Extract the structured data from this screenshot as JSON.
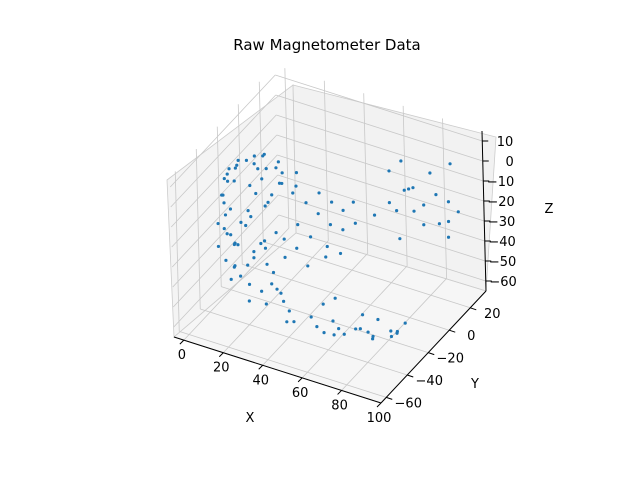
{
  "chart_data": {
    "type": "scatter3d",
    "title": "Raw Magnetometer Data",
    "xlabel": "X",
    "ylabel": "Y",
    "zlabel": "Z",
    "xlim": [
      -5,
      100
    ],
    "ylim": [
      -65,
      35
    ],
    "zlim": [
      -65,
      15
    ],
    "xticks": [
      0,
      20,
      40,
      60,
      80,
      100
    ],
    "yticks": [
      -60,
      -40,
      -20,
      0,
      20
    ],
    "zticks": [
      -60,
      -50,
      -40,
      -30,
      -20,
      -10,
      0,
      10
    ],
    "grid": true,
    "marker_color": "#1f77b4",
    "points": [
      [
        15,
        -30,
        10
      ],
      [
        18,
        -28,
        12
      ],
      [
        20,
        -32,
        11
      ],
      [
        22,
        -26,
        13
      ],
      [
        25,
        -30,
        9
      ],
      [
        28,
        -24,
        10
      ],
      [
        30,
        -30,
        11
      ],
      [
        24,
        -36,
        12
      ],
      [
        32,
        -28,
        8
      ],
      [
        35,
        -34,
        7
      ],
      [
        12,
        -35,
        8
      ],
      [
        10,
        -30,
        6
      ],
      [
        8,
        -25,
        5
      ],
      [
        6,
        -30,
        3
      ],
      [
        14,
        -40,
        5
      ],
      [
        27,
        -38,
        9
      ],
      [
        36,
        -22,
        6
      ],
      [
        40,
        -30,
        5
      ],
      [
        19,
        -22,
        9
      ],
      [
        33,
        -40,
        4
      ],
      [
        5,
        -30,
        0
      ],
      [
        4,
        -28,
        -5
      ],
      [
        3,
        -32,
        -10
      ],
      [
        3,
        -30,
        -15
      ],
      [
        4,
        -26,
        -20
      ],
      [
        5,
        -34,
        -25
      ],
      [
        6,
        -30,
        -30
      ],
      [
        7,
        -28,
        -35
      ],
      [
        6,
        -35,
        -40
      ],
      [
        5,
        -25,
        -38
      ],
      [
        3,
        -36,
        -22
      ],
      [
        2,
        -29,
        -12
      ],
      [
        8,
        -31,
        -45
      ],
      [
        10,
        -29,
        -50
      ],
      [
        9,
        -36,
        -48
      ],
      [
        11,
        -24,
        -47
      ],
      [
        4,
        -31,
        -2
      ],
      [
        7,
        -22,
        -28
      ],
      [
        2,
        -26,
        -33
      ],
      [
        4,
        -38,
        -32
      ],
      [
        15,
        -30,
        -52
      ],
      [
        20,
        -28,
        -55
      ],
      [
        25,
        -33,
        -57
      ],
      [
        30,
        -26,
        -58
      ],
      [
        35,
        -30,
        -59
      ],
      [
        40,
        -35,
        -60
      ],
      [
        45,
        -28,
        -60
      ],
      [
        50,
        -32,
        -61
      ],
      [
        55,
        -26,
        -60
      ],
      [
        60,
        -30,
        -60
      ],
      [
        65,
        -34,
        -59
      ],
      [
        70,
        -28,
        -58
      ],
      [
        75,
        -30,
        -57
      ],
      [
        80,
        -35,
        -56
      ],
      [
        85,
        -27,
        -55
      ],
      [
        88,
        -32,
        -54
      ],
      [
        90,
        -30,
        -52
      ],
      [
        92,
        -34,
        -50
      ],
      [
        93,
        -28,
        -48
      ],
      [
        78,
        -26,
        -52
      ],
      [
        62,
        -38,
        -58
      ],
      [
        48,
        -22,
        -56
      ],
      [
        38,
        -38,
        -59
      ],
      [
        68,
        -22,
        -55
      ],
      [
        58,
        -40,
        -57
      ],
      [
        72,
        -36,
        -53
      ],
      [
        83,
        -40,
        -51
      ],
      [
        52,
        -18,
        -54
      ],
      [
        18,
        -36,
        -56
      ],
      [
        26,
        -21,
        -58
      ],
      [
        25,
        -18,
        -5
      ],
      [
        30,
        -15,
        -10
      ],
      [
        35,
        -12,
        -15
      ],
      [
        40,
        -10,
        -20
      ],
      [
        45,
        -8,
        -25
      ],
      [
        38,
        -14,
        -30
      ],
      [
        33,
        -18,
        -35
      ],
      [
        28,
        -20,
        -40
      ],
      [
        42,
        -6,
        -38
      ],
      [
        47,
        -10,
        -12
      ],
      [
        50,
        -5,
        -18
      ],
      [
        55,
        -3,
        -24
      ],
      [
        44,
        -16,
        -5
      ],
      [
        36,
        -22,
        -20
      ],
      [
        30,
        -24,
        -28
      ],
      [
        52,
        -12,
        -35
      ],
      [
        48,
        -2,
        -30
      ],
      [
        57,
        -8,
        -10
      ],
      [
        40,
        -4,
        -45
      ],
      [
        34,
        -10,
        -48
      ],
      [
        55,
        15,
        -30
      ],
      [
        60,
        20,
        -25
      ],
      [
        65,
        25,
        -20
      ],
      [
        70,
        20,
        -15
      ],
      [
        75,
        15,
        -10
      ],
      [
        80,
        22,
        -5
      ],
      [
        85,
        18,
        -12
      ],
      [
        88,
        24,
        -18
      ],
      [
        90,
        20,
        -25
      ],
      [
        92,
        16,
        -30
      ],
      [
        62,
        28,
        -8
      ],
      [
        72,
        30,
        -28
      ],
      [
        82,
        26,
        -32
      ],
      [
        68,
        12,
        -22
      ],
      [
        78,
        10,
        -18
      ],
      [
        86,
        30,
        -3
      ],
      [
        94,
        22,
        -20
      ],
      [
        58,
        24,
        -12
      ],
      [
        74,
        26,
        -35
      ],
      [
        66,
        18,
        -40
      ],
      [
        28,
        -33,
        -46
      ],
      [
        22,
        -26,
        -42
      ],
      [
        16,
        -34,
        -20
      ],
      [
        20,
        -20,
        -15
      ],
      [
        12,
        -22,
        -8
      ],
      [
        26,
        -35,
        -24
      ],
      [
        14,
        -38,
        -28
      ],
      [
        18,
        -24,
        -34
      ],
      [
        24,
        -30,
        -10
      ],
      [
        32,
        -35,
        -18
      ],
      [
        8,
        -38,
        -15
      ],
      [
        11,
        -20,
        -25
      ],
      [
        22,
        -38,
        -32
      ],
      [
        17,
        -18,
        -40
      ],
      [
        29,
        -30,
        -50
      ],
      [
        10,
        -34,
        -42
      ],
      [
        13,
        -26,
        -18
      ],
      [
        23,
        -22,
        -48
      ],
      [
        21,
        -33,
        -3
      ],
      [
        16,
        -27,
        -37
      ]
    ]
  }
}
